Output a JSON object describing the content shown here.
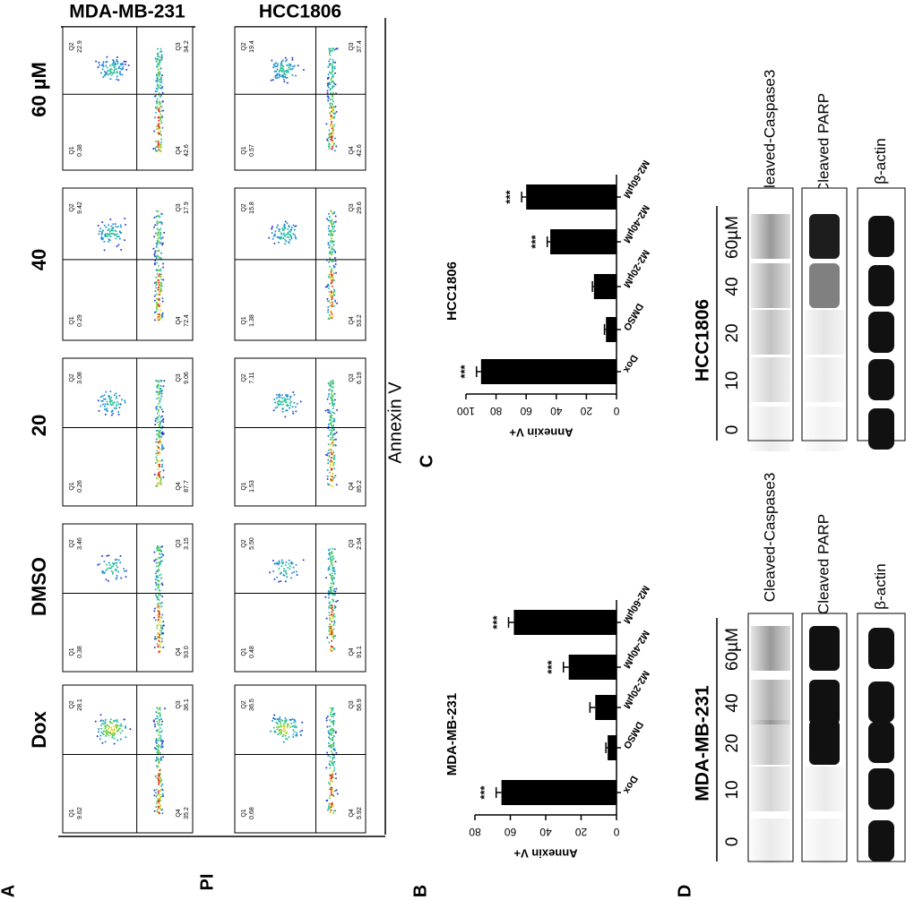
{
  "panel_labels": [
    "A",
    "B",
    "C",
    "D"
  ],
  "flow": {
    "y_label": "PI",
    "x_label": "Annexin V",
    "cell_lines": [
      "MDA-MB-231",
      "HCC1806"
    ],
    "treatments": [
      "Dox",
      "DMSO",
      "20",
      "40",
      "60 µM"
    ],
    "quadrant_names": [
      "Q1",
      "Q2",
      "Q3",
      "Q4"
    ],
    "quadrants": [
      [
        [
          "9.62",
          "28.1",
          "36.1",
          "35.2"
        ],
        [
          "0.38",
          "3.46",
          "3.15",
          "93.0"
        ],
        [
          "0.26",
          "3.08",
          "9.06",
          "87.7"
        ],
        [
          "0.29",
          "9.42",
          "17.9",
          "72.4"
        ],
        [
          "0.38",
          "22.9",
          "34.2",
          "42.6"
        ]
      ],
      [
        [
          "0.68",
          "36.5",
          "56.9",
          "5.92"
        ],
        [
          "0.48",
          "5.50",
          "2.94",
          "91.1"
        ],
        [
          "1.53",
          "7.11",
          "6.19",
          "85.2"
        ],
        [
          "1.38",
          "15.8",
          "29.6",
          "53.2"
        ],
        [
          "0.57",
          "19.4",
          "37.4",
          "42.6"
        ]
      ]
    ]
  },
  "bar_charts": [
    {
      "type": "bar",
      "title": "MDA-MB-231",
      "y_label": "Annexin V+",
      "categories": [
        "Dox",
        "DMSO",
        "M2-20µM",
        "M2-40µM",
        "M2-60µM"
      ],
      "values": [
        65,
        5,
        12,
        27,
        58
      ],
      "errors": [
        3,
        1,
        3,
        3,
        3
      ],
      "significance": [
        "***",
        null,
        null,
        "***",
        "***"
      ],
      "ylim": [
        0,
        80
      ],
      "yticks": [
        0,
        20,
        40,
        60,
        80
      ],
      "color": "#000000"
    },
    {
      "type": "bar",
      "title": "HCC1806",
      "y_label": "Annexin V+",
      "categories": [
        "Dox",
        "DMSO",
        "M2-20µM",
        "M2-40µM",
        "M2-60µM"
      ],
      "values": [
        90,
        7,
        15,
        44,
        60
      ],
      "errors": [
        3,
        1,
        1,
        2,
        3
      ],
      "significance": [
        "***",
        null,
        null,
        "***",
        "***"
      ],
      "ylim": [
        0,
        100
      ],
      "yticks": [
        0,
        20,
        40,
        60,
        80,
        100
      ],
      "color": "#000000"
    }
  ],
  "blots": {
    "cell_lines": [
      "MDA-MB-231",
      "HCC1806"
    ],
    "doses": [
      "0",
      "10",
      "20",
      "40",
      "60µM"
    ],
    "proteins": [
      "Cleaved-Caspase3",
      "Cleaved PARP",
      "β-actin"
    ]
  }
}
